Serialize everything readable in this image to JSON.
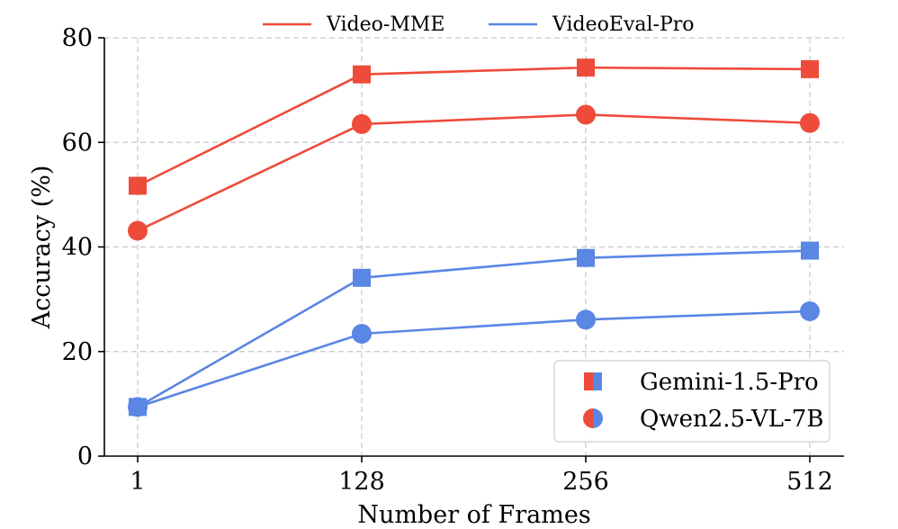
{
  "chart_data": {
    "type": "line",
    "x": [
      1,
      128,
      256,
      512
    ],
    "x_tick_labels": [
      "1",
      "128",
      "256",
      "512"
    ],
    "y_ticks": [
      0,
      20,
      40,
      60,
      80
    ],
    "ylim": [
      0,
      80
    ],
    "xlabel": "Number of Frames",
    "ylabel": "Accuracy (%)",
    "grid": true,
    "colors": {
      "video_mme": "#ee4b3a",
      "videoeval_pro": "#5a86e4"
    },
    "top_legend": [
      {
        "name": "Video-MME",
        "color_key": "video_mme"
      },
      {
        "name": "VideoEval-Pro",
        "color_key": "videoeval_pro"
      }
    ],
    "marker_legend": [
      {
        "name": "Gemini-1.5-Pro",
        "marker": "square"
      },
      {
        "name": "Qwen2.5-VL-7B",
        "marker": "circle"
      }
    ],
    "legend_placement": {
      "benchmarks": "top-center",
      "models": "lower-right"
    },
    "series": [
      {
        "benchmark": "Video-MME",
        "model": "Gemini-1.5-Pro",
        "color_key": "video_mme",
        "marker": "square",
        "values": [
          51.7,
          73.0,
          74.3,
          74.0
        ]
      },
      {
        "benchmark": "Video-MME",
        "model": "Qwen2.5-VL-7B",
        "color_key": "video_mme",
        "marker": "circle",
        "values": [
          43.1,
          63.5,
          65.3,
          63.7
        ]
      },
      {
        "benchmark": "VideoEval-Pro",
        "model": "Gemini-1.5-Pro",
        "color_key": "videoeval_pro",
        "marker": "square",
        "values": [
          9.4,
          34.1,
          37.9,
          39.3
        ]
      },
      {
        "benchmark": "VideoEval-Pro",
        "model": "Qwen2.5-VL-7B",
        "color_key": "videoeval_pro",
        "marker": "circle",
        "values": [
          9.4,
          23.4,
          26.1,
          27.7
        ]
      }
    ]
  }
}
